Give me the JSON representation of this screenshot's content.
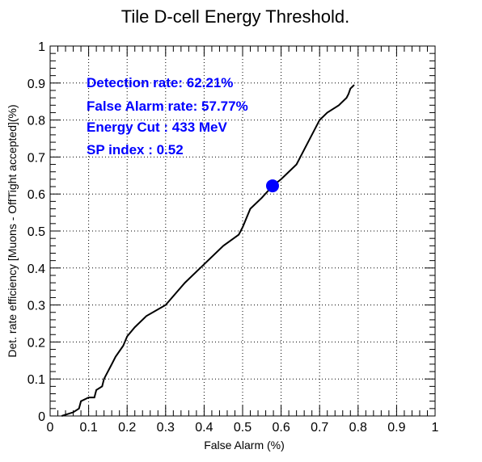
{
  "chart_data": {
    "type": "line",
    "title": "Tile D-cell Energy Threshold.",
    "xlabel": "False Alarm (%)",
    "ylabel": "Det. rate efficiency [Muons - OffTight accepted](%)",
    "xlim": [
      0,
      1
    ],
    "ylim": [
      0,
      1
    ],
    "grid": true,
    "x_ticks": [
      "0",
      "0.1",
      "0.2",
      "0.3",
      "0.4",
      "0.5",
      "0.6",
      "0.7",
      "0.8",
      "0.9",
      "1"
    ],
    "y_ticks": [
      "0",
      "0.1",
      "0.2",
      "0.3",
      "0.4",
      "0.5",
      "0.6",
      "0.7",
      "0.8",
      "0.9",
      "1"
    ],
    "series": [
      {
        "x": [
          0.03,
          0.06,
          0.075,
          0.08,
          0.1,
          0.115,
          0.12,
          0.135,
          0.14,
          0.16,
          0.17,
          0.19,
          0.2,
          0.22,
          0.25,
          0.3,
          0.35,
          0.4,
          0.45,
          0.49,
          0.5,
          0.52,
          0.55,
          0.578,
          0.6,
          0.64,
          0.67,
          0.7,
          0.72,
          0.75,
          0.77,
          0.775,
          0.78,
          0.785,
          0.79
        ],
        "y": [
          0.0,
          0.01,
          0.02,
          0.04,
          0.05,
          0.05,
          0.07,
          0.08,
          0.1,
          0.14,
          0.16,
          0.19,
          0.215,
          0.24,
          0.27,
          0.3,
          0.36,
          0.41,
          0.46,
          0.49,
          0.51,
          0.56,
          0.59,
          0.6221,
          0.64,
          0.68,
          0.74,
          0.8,
          0.82,
          0.84,
          0.86,
          0.87,
          0.885,
          0.89,
          0.895
        ]
      }
    ],
    "marker": {
      "x": 0.5777,
      "y": 0.6221,
      "color": "#0000ff"
    },
    "annotations": [
      "Detection rate: 62.21%",
      "False Alarm rate: 57.77%",
      "Energy Cut : 433 MeV",
      "SP index : 0.52"
    ],
    "colors": {
      "curve": "#000000",
      "marker": "#0000ff",
      "annotation": "#0000ff",
      "grid": "#000000"
    }
  }
}
